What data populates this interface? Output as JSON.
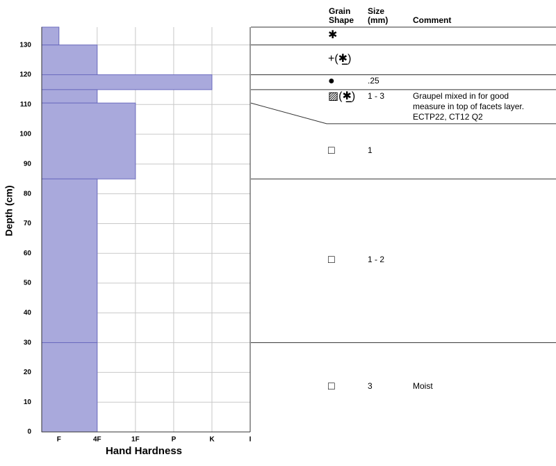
{
  "chart_data": {
    "type": "snow-profile",
    "x_label": "Hand Hardness",
    "y_label": "Depth (cm)",
    "ylim": [
      0,
      136
    ],
    "yticks": [
      0,
      10,
      20,
      30,
      40,
      50,
      60,
      70,
      80,
      90,
      100,
      110,
      120,
      130
    ],
    "xlim": [
      0.55,
      6
    ],
    "xticks": [
      {
        "value": 1,
        "label": "F"
      },
      {
        "value": 2,
        "label": "4F"
      },
      {
        "value": 3,
        "label": "1F"
      },
      {
        "value": 4,
        "label": "P"
      },
      {
        "value": 5,
        "label": "K"
      },
      {
        "value": 6,
        "label": "I"
      }
    ],
    "grid": true,
    "color": "#a9a9dc",
    "edge_color": "#6b6bbf",
    "columns": {
      "grain_shape": "Grain Shape",
      "size": "Size (mm)",
      "comment": "Comment"
    },
    "layers": [
      {
        "bottom": 130,
        "top": 136,
        "hardness": 1,
        "grain_shape": "✱"
      },
      {
        "bottom": 120,
        "top": 130,
        "hardness": 2,
        "grain_shape": "+(✱̲)"
      },
      {
        "bottom": 115,
        "top": 120,
        "hardness": 5,
        "grain_shape": "●",
        "size": ".25"
      },
      {
        "bottom": 110.5,
        "top": 115,
        "hardness": 2,
        "grain_shape": "▨(✱̲)",
        "size": "1 - 3",
        "comment": "Graupel mixed in for good measure in top of facets layer. ECTP22, CT12 Q2"
      },
      {
        "bottom": 85,
        "top": 110.5,
        "hardness": 3,
        "grain_shape": "□",
        "size": "1"
      },
      {
        "bottom": 30,
        "top": 85,
        "hardness": 2,
        "grain_shape": "□",
        "size": "1 - 2"
      },
      {
        "bottom": 0,
        "top": 30,
        "hardness": 2,
        "grain_shape": "□",
        "size": "3",
        "comment": "Moist"
      }
    ]
  }
}
